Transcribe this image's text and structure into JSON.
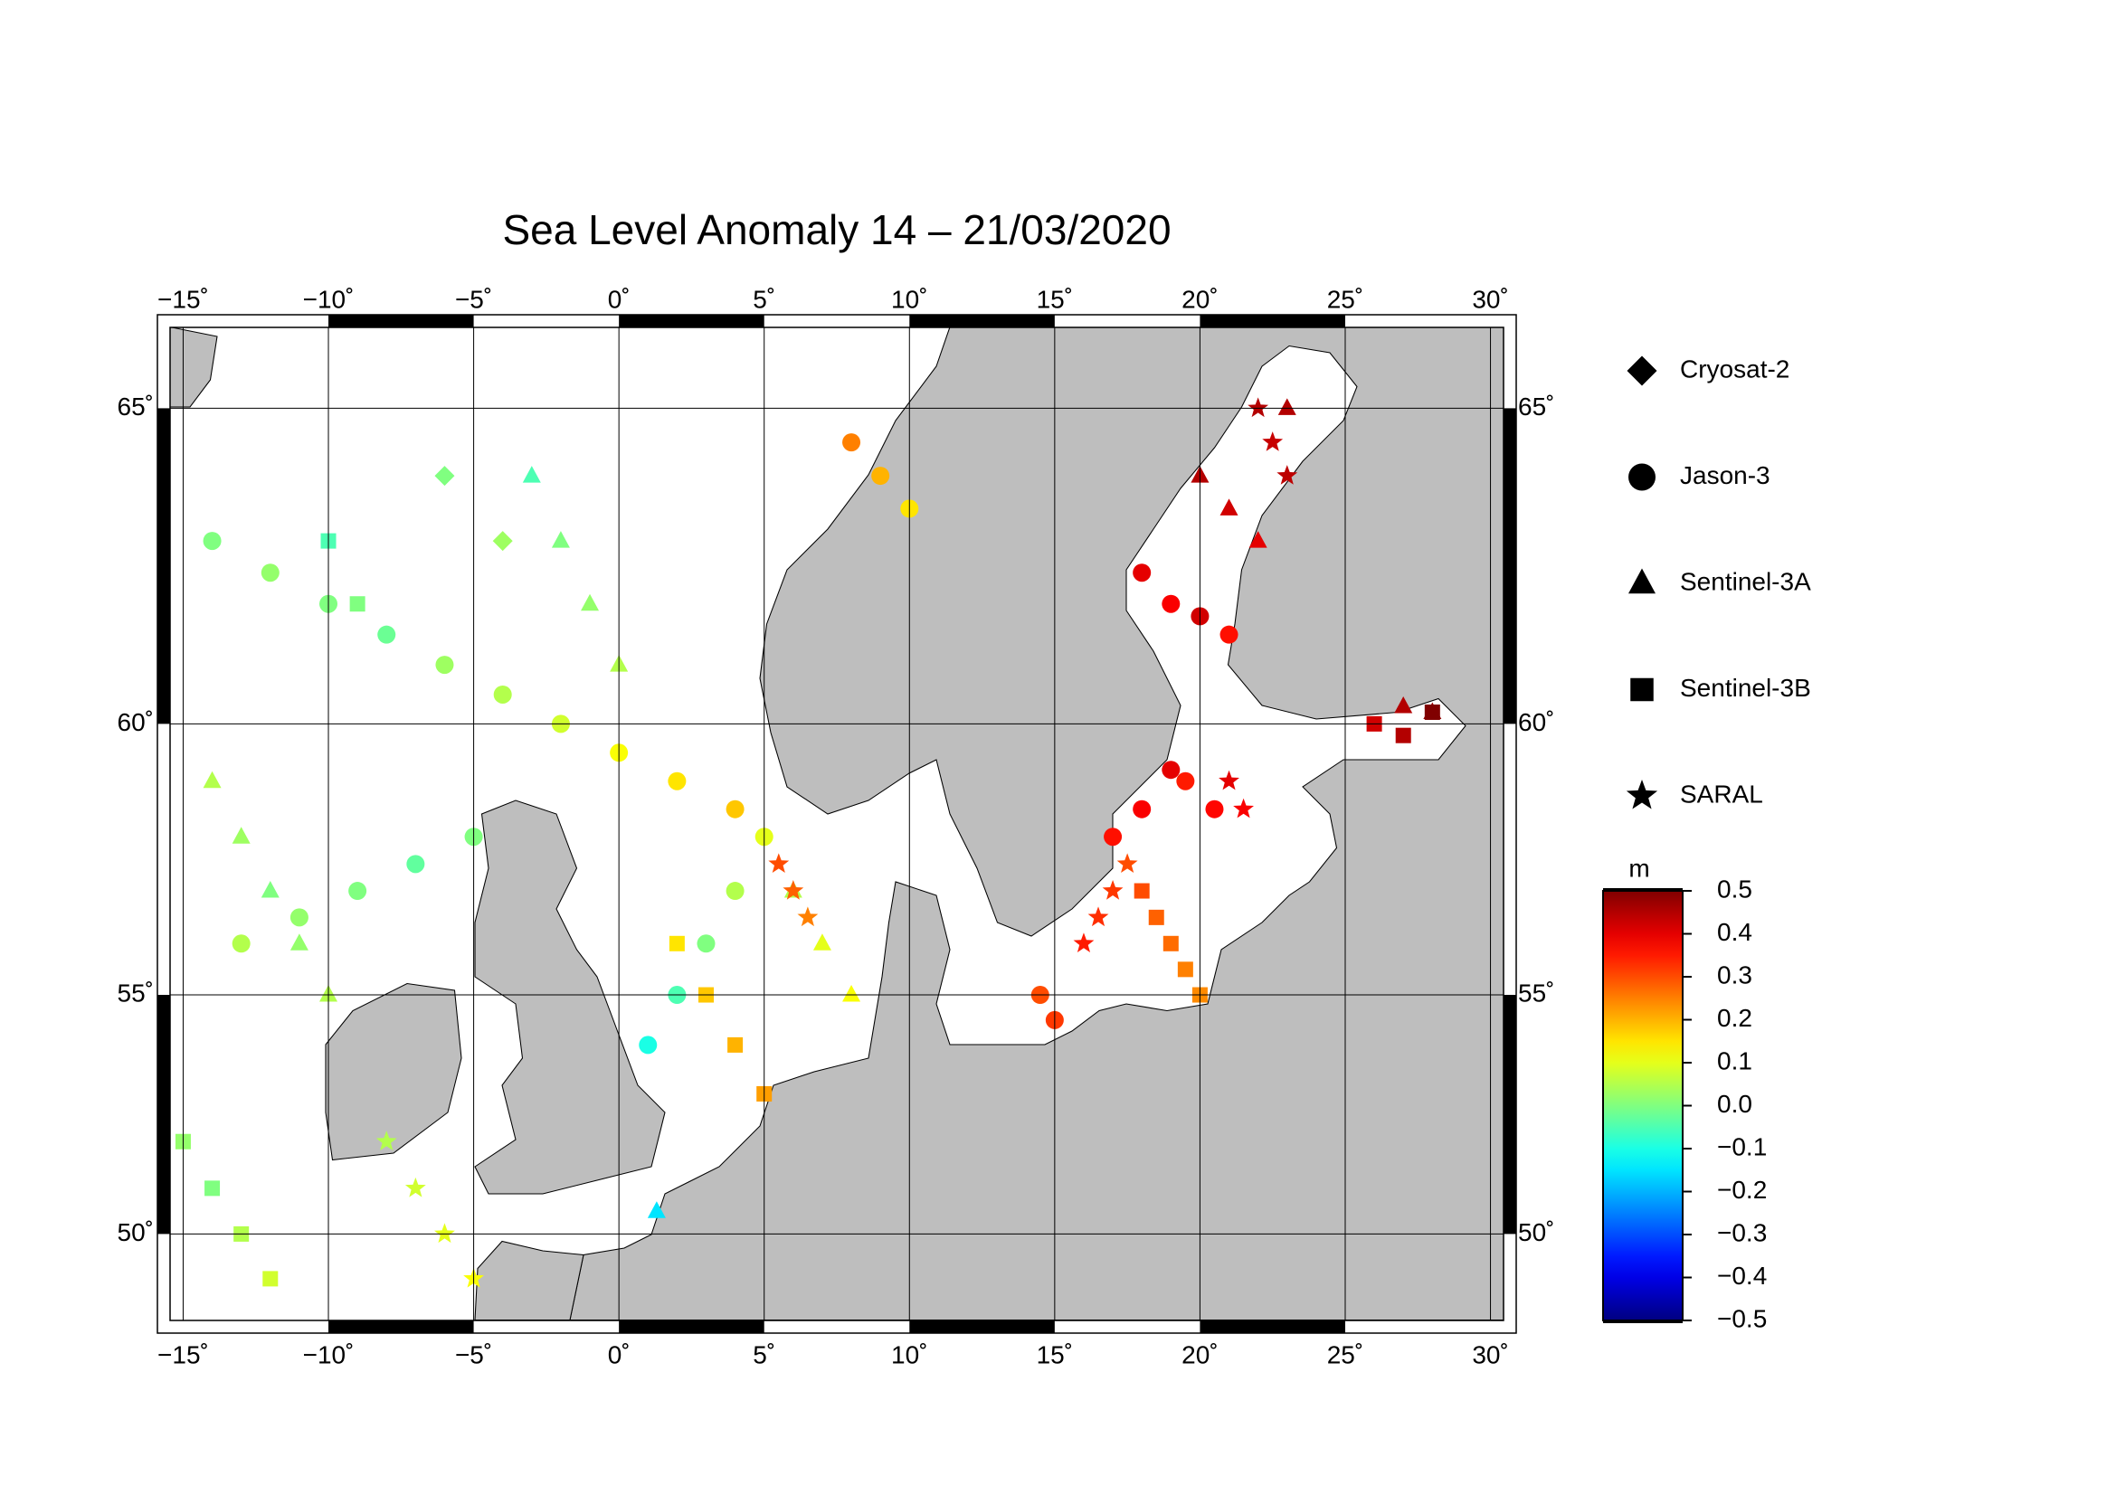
{
  "chart_data": {
    "type": "map",
    "title": "Sea Level Anomaly 14 – 21/03/2020",
    "projection": "mercator",
    "xlim": [
      -15.45,
      30.45
    ],
    "ylim": [
      48.05,
      66.15
    ],
    "xticks": [
      {
        "value": -15,
        "label": "−15˚"
      },
      {
        "value": -10,
        "label": "−10˚"
      },
      {
        "value": -5,
        "label": "−5˚"
      },
      {
        "value": 0,
        "label": "0˚"
      },
      {
        "value": 5,
        "label": "5˚"
      },
      {
        "value": 10,
        "label": "10˚"
      },
      {
        "value": 15,
        "label": "15˚"
      },
      {
        "value": 20,
        "label": "20˚"
      },
      {
        "value": 25,
        "label": "25˚"
      },
      {
        "value": 30,
        "label": "30˚"
      }
    ],
    "yticks": [
      {
        "value": 50,
        "label": "50˚"
      },
      {
        "value": 55,
        "label": "55˚"
      },
      {
        "value": 60,
        "label": "60˚"
      },
      {
        "value": 65,
        "label": "65˚"
      }
    ],
    "grid": true,
    "colormap": "jet",
    "colorbar_unit": "m",
    "clim": [
      -0.5,
      0.5
    ],
    "cticks": [
      0.5,
      0.4,
      0.3,
      0.2,
      0.1,
      {
        "value": 0,
        "label": "0.0"
      },
      {
        "value": -0.1,
        "label": "−0.1"
      },
      {
        "value": -0.2,
        "label": "−0.2"
      },
      {
        "value": -0.3,
        "label": "−0.3"
      },
      {
        "value": -0.4,
        "label": "−0.4"
      },
      {
        "value": -0.5,
        "label": "−0.5"
      }
    ],
    "series": [
      {
        "name": "Cryosat-2",
        "marker": "diamond",
        "lon": [
          -6,
          -4
        ],
        "lat": [
          64,
          63
        ],
        "values": [
          0.0,
          0.03
        ]
      },
      {
        "name": "Jason-3",
        "marker": "circle",
        "lon": [
          -14,
          -12,
          -10,
          -8,
          -6,
          -4,
          -2,
          0,
          2,
          4,
          -13,
          -11,
          -9,
          -7,
          -5,
          1,
          2,
          3,
          4,
          5,
          8,
          9,
          10,
          18,
          19,
          20,
          21,
          19.5,
          20.5,
          15,
          14.5,
          17,
          18,
          19
        ],
        "lat": [
          63,
          62.5,
          62,
          61.5,
          61,
          60.5,
          60,
          59.5,
          59,
          58.5,
          56,
          56.5,
          57,
          57.5,
          58,
          54,
          55,
          56,
          57,
          58,
          64.5,
          64,
          63.5,
          62.5,
          62,
          61.8,
          61.5,
          59,
          58.5,
          54.5,
          55,
          58,
          58.5,
          59.2
        ],
        "values": [
          0.0,
          0.02,
          0.0,
          -0.02,
          0.03,
          0.05,
          0.08,
          0.12,
          0.15,
          0.18,
          0.05,
          0.02,
          0.0,
          -0.03,
          0.0,
          -0.1,
          -0.05,
          0.0,
          0.05,
          0.1,
          0.25,
          0.2,
          0.15,
          0.4,
          0.38,
          0.42,
          0.36,
          0.35,
          0.37,
          0.32,
          0.3,
          0.36,
          0.38,
          0.4
        ]
      },
      {
        "name": "Sentinel-3A",
        "marker": "triangle",
        "lon": [
          -14,
          -13,
          -12,
          -11,
          -10,
          -3,
          -2,
          -1,
          0,
          6,
          7,
          8,
          20,
          21,
          22,
          23,
          27,
          28,
          1.3
        ],
        "lat": [
          59,
          58,
          57,
          56,
          55,
          64,
          63,
          62,
          61,
          57,
          56,
          55,
          64,
          63.5,
          63,
          65,
          60.3,
          60.2,
          50.5
        ],
        "values": [
          0.05,
          0.03,
          0.0,
          0.02,
          0.05,
          -0.05,
          0.0,
          0.02,
          0.05,
          0.05,
          0.1,
          0.12,
          0.45,
          0.42,
          0.4,
          0.45,
          0.45,
          0.48,
          -0.15
        ]
      },
      {
        "name": "Sentinel-3B",
        "marker": "square",
        "lon": [
          -15,
          -14,
          -13,
          -12,
          2,
          3,
          4,
          5,
          18,
          18.5,
          19,
          19.5,
          20,
          26,
          27,
          28,
          -10,
          -9
        ],
        "lat": [
          52,
          51,
          50,
          49,
          56,
          55,
          54,
          53,
          57,
          56.5,
          56,
          55.5,
          55,
          60,
          59.8,
          60.2,
          63,
          62
        ],
        "values": [
          0.02,
          0.0,
          0.05,
          0.08,
          0.15,
          0.18,
          0.2,
          0.22,
          0.3,
          0.28,
          0.27,
          0.25,
          0.24,
          0.42,
          0.45,
          0.5,
          -0.05,
          0.0
        ]
      },
      {
        "name": "SARAL",
        "marker": "star",
        "lon": [
          -8,
          -7,
          -6,
          -5,
          5.5,
          6,
          6.5,
          16,
          16.5,
          17,
          17.5,
          22,
          22.5,
          23,
          21,
          21.5
        ],
        "lat": [
          52,
          51,
          50,
          49,
          57.5,
          57,
          56.5,
          56,
          56.5,
          57,
          57.5,
          65,
          64.5,
          64,
          59,
          58.5
        ],
        "values": [
          0.05,
          0.08,
          0.1,
          0.12,
          0.3,
          0.28,
          0.25,
          0.35,
          0.33,
          0.32,
          0.3,
          0.45,
          0.43,
          0.44,
          0.4,
          0.38
        ]
      }
    ]
  }
}
